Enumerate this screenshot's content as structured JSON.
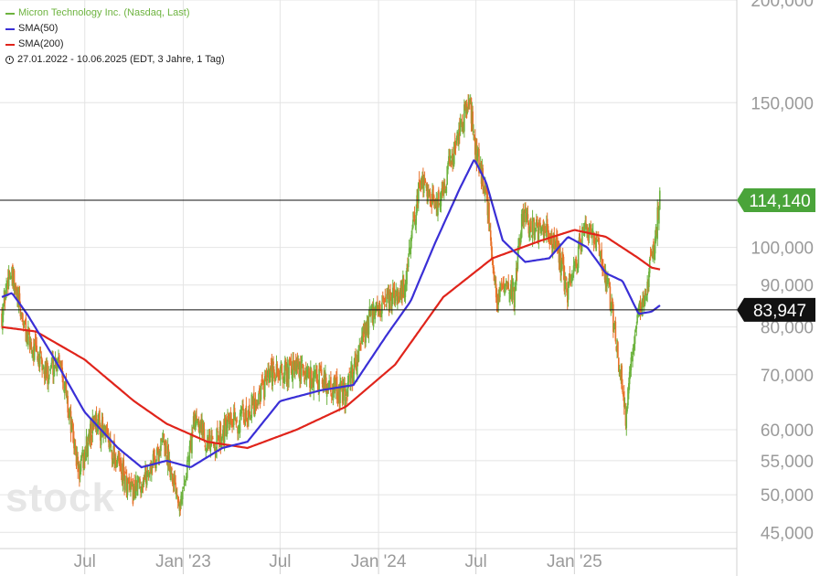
{
  "legend": {
    "title": "Micron Technology Inc. (Nasdaq, Last)",
    "sma50": "SMA(50)",
    "sma200": "SMA(200)",
    "period": "27.01.2022 - 10.06.2025  (EDT, 3 Jahre, 1 Tag)"
  },
  "watermark": "stock",
  "colors": {
    "up": "#6db33f",
    "down": "#e8722a",
    "sma50": "#3a2fd6",
    "sma200": "#e0241b",
    "last_badge": "#4aa43a",
    "ref_badge": "#111111"
  },
  "chart_data": {
    "type": "candlestick",
    "y_scale": "log",
    "ylim": [
      43000,
      200000
    ],
    "y_ticks": [
      "45,000",
      "50,000",
      "55,000",
      "60,000",
      "70,000",
      "80,000",
      "90,000",
      "100,000",
      "150,000",
      "200,000"
    ],
    "x_ticks": [
      "Jul",
      "Jan '23",
      "Jul",
      "Jan '24",
      "Jul",
      "Jan '25"
    ],
    "last_value": "114,140",
    "reference_value": "83,947",
    "price_anchors": [
      [
        "2022-01-27",
        83000
      ],
      [
        "2022-02-10",
        94000
      ],
      [
        "2022-03-15",
        78000
      ],
      [
        "2022-04-20",
        70000
      ],
      [
        "2022-05-15",
        74000
      ],
      [
        "2022-06-20",
        53000
      ],
      [
        "2022-07-20",
        62000
      ],
      [
        "2022-08-20",
        57000
      ],
      [
        "2022-09-25",
        50000
      ],
      [
        "2022-10-25",
        53000
      ],
      [
        "2022-11-25",
        58000
      ],
      [
        "2022-12-28",
        49000
      ],
      [
        "2023-01-25",
        63000
      ],
      [
        "2023-02-20",
        57000
      ],
      [
        "2023-03-20",
        60000
      ],
      [
        "2023-04-25",
        62000
      ],
      [
        "2023-06-15",
        70000
      ],
      [
        "2023-08-01",
        71000
      ],
      [
        "2023-09-15",
        69000
      ],
      [
        "2023-10-30",
        66000
      ],
      [
        "2023-12-15",
        82000
      ],
      [
        "2024-01-15",
        85000
      ],
      [
        "2024-02-20",
        90000
      ],
      [
        "2024-03-20",
        122000
      ],
      [
        "2024-04-20",
        112000
      ],
      [
        "2024-06-18",
        152000
      ],
      [
        "2024-07-01",
        131000
      ],
      [
        "2024-07-20",
        117000
      ],
      [
        "2024-08-07",
        88000
      ],
      [
        "2024-09-10",
        88000
      ],
      [
        "2024-09-26",
        110000
      ],
      [
        "2024-10-20",
        105000
      ],
      [
        "2024-11-25",
        102000
      ],
      [
        "2024-12-20",
        88000
      ],
      [
        "2025-01-20",
        106000
      ],
      [
        "2025-02-20",
        98000
      ],
      [
        "2025-03-10",
        86000
      ],
      [
        "2025-04-07",
        62000
      ],
      [
        "2025-04-25",
        80000
      ],
      [
        "2025-05-20",
        92000
      ],
      [
        "2025-06-10",
        114140
      ]
    ],
    "sma50_anchors": [
      [
        "2022-01-27",
        87000
      ],
      [
        "2022-02-15",
        88000
      ],
      [
        "2022-03-15",
        83000
      ],
      [
        "2022-05-01",
        74000
      ],
      [
        "2022-07-01",
        63000
      ],
      [
        "2022-09-01",
        57000
      ],
      [
        "2022-10-15",
        54000
      ],
      [
        "2022-12-01",
        55000
      ],
      [
        "2023-01-15",
        54000
      ],
      [
        "2023-03-15",
        57000
      ],
      [
        "2023-05-01",
        58000
      ],
      [
        "2023-07-01",
        65000
      ],
      [
        "2023-09-15",
        67000
      ],
      [
        "2023-11-15",
        68000
      ],
      [
        "2024-01-15",
        78000
      ],
      [
        "2024-03-01",
        86000
      ],
      [
        "2024-04-15",
        101000
      ],
      [
        "2024-06-01",
        118000
      ],
      [
        "2024-06-28",
        128000
      ],
      [
        "2024-07-20",
        120000
      ],
      [
        "2024-08-20",
        102000
      ],
      [
        "2024-10-01",
        96000
      ],
      [
        "2024-11-15",
        97000
      ],
      [
        "2024-12-20",
        103000
      ],
      [
        "2025-01-25",
        100000
      ],
      [
        "2025-03-01",
        93000
      ],
      [
        "2025-04-01",
        91000
      ],
      [
        "2025-05-01",
        83000
      ],
      [
        "2025-05-25",
        83500
      ],
      [
        "2025-06-10",
        85000
      ]
    ],
    "sma200_anchors": [
      [
        "2022-01-27",
        80000
      ],
      [
        "2022-04-01",
        79000
      ],
      [
        "2022-07-01",
        73000
      ],
      [
        "2022-10-01",
        65000
      ],
      [
        "2022-12-01",
        61000
      ],
      [
        "2023-02-15",
        58000
      ],
      [
        "2023-05-01",
        57000
      ],
      [
        "2023-08-01",
        60000
      ],
      [
        "2023-11-01",
        64000
      ],
      [
        "2024-02-01",
        72000
      ],
      [
        "2024-05-01",
        87000
      ],
      [
        "2024-08-01",
        97000
      ],
      [
        "2024-11-01",
        102000
      ],
      [
        "2025-01-01",
        105000
      ],
      [
        "2025-03-01",
        103000
      ],
      [
        "2025-05-01",
        97000
      ],
      [
        "2025-05-25",
        94500
      ],
      [
        "2025-06-10",
        94000
      ]
    ]
  }
}
